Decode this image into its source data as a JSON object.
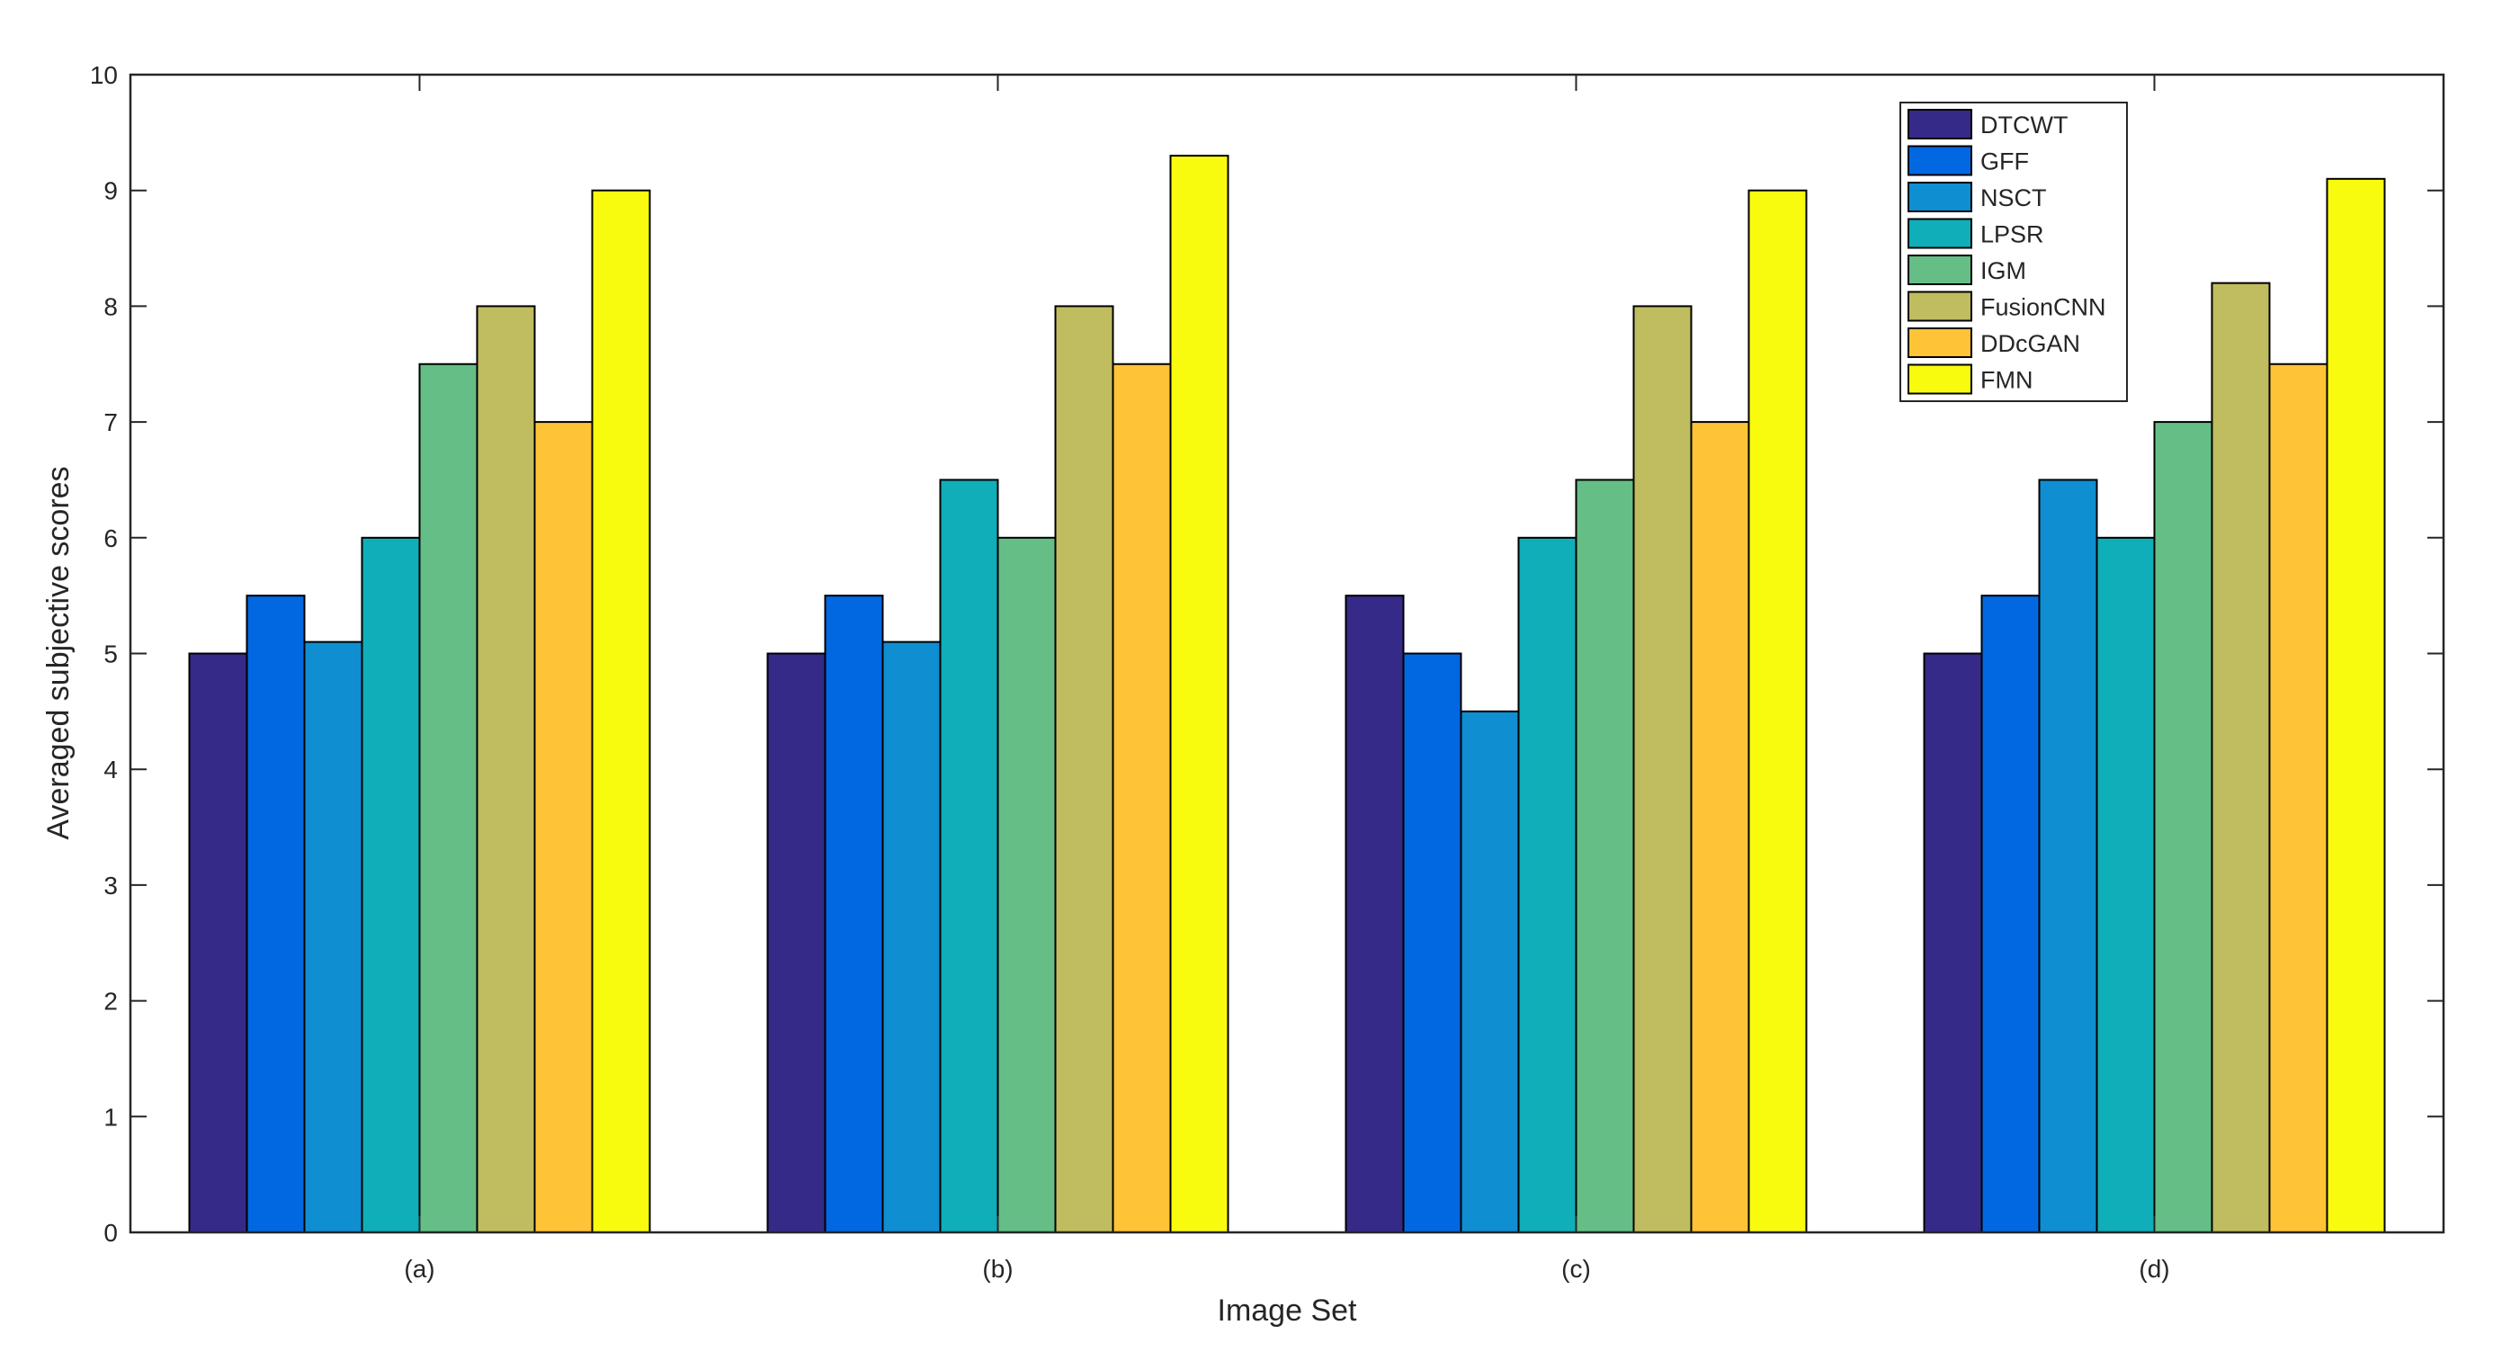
{
  "chart_data": {
    "type": "bar",
    "title": "",
    "xlabel": "Image Set",
    "ylabel": "Averaged subjective scores",
    "ylim": [
      0,
      10
    ],
    "yticks": [
      "0",
      "1",
      "2",
      "3",
      "4",
      "5",
      "6",
      "7",
      "8",
      "9",
      "10"
    ],
    "grid": false,
    "legend_position": "top-right",
    "categories": [
      "(a)",
      "(b)",
      "(c)",
      "(d)"
    ],
    "series": [
      {
        "name": "DTCWT",
        "color": "#352A87",
        "values": [
          5.0,
          5.0,
          5.5,
          5.0
        ]
      },
      {
        "name": "GFF",
        "color": "#0268E1",
        "values": [
          5.5,
          5.5,
          5.0,
          5.5
        ]
      },
      {
        "name": "NSCT",
        "color": "#108ED2",
        "values": [
          5.1,
          5.1,
          4.5,
          6.5
        ]
      },
      {
        "name": "LPSR",
        "color": "#0FAEB9",
        "values": [
          6.0,
          6.5,
          6.0,
          6.0
        ]
      },
      {
        "name": "IGM",
        "color": "#65BE86",
        "values": [
          7.5,
          6.0,
          6.5,
          7.0
        ]
      },
      {
        "name": "FusionCNN",
        "color": "#C0BC60",
        "values": [
          8.0,
          8.0,
          8.0,
          8.2
        ]
      },
      {
        "name": "DDcGAN",
        "color": "#FFC337",
        "values": [
          7.0,
          7.5,
          7.0,
          7.5
        ]
      },
      {
        "name": "FMN",
        "color": "#F9FB0E",
        "values": [
          9.0,
          9.3,
          9.0,
          9.1
        ]
      }
    ]
  }
}
